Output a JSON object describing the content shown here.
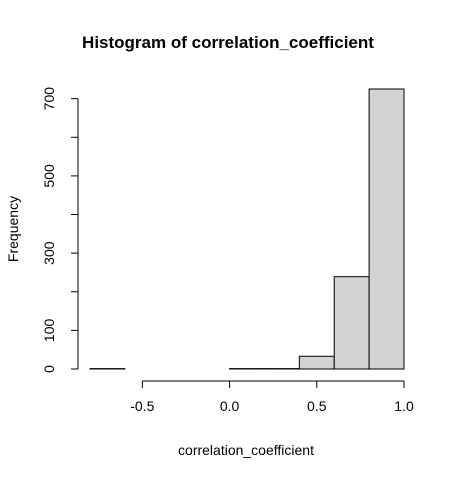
{
  "chart_data": {
    "type": "bar",
    "title": "Histogram of correlation_coefficient",
    "xlabel": "correlation_coefficient",
    "ylabel": "Frequency",
    "bins": [
      {
        "start": -0.8,
        "end": -0.6,
        "count": 1
      },
      {
        "start": -0.6,
        "end": -0.4,
        "count": 0
      },
      {
        "start": -0.4,
        "end": -0.2,
        "count": 0
      },
      {
        "start": -0.2,
        "end": 0.0,
        "count": 0
      },
      {
        "start": 0.0,
        "end": 0.2,
        "count": 1
      },
      {
        "start": 0.2,
        "end": 0.4,
        "count": 1
      },
      {
        "start": 0.4,
        "end": 0.6,
        "count": 33
      },
      {
        "start": 0.6,
        "end": 0.8,
        "count": 239
      },
      {
        "start": 0.8,
        "end": 1.0,
        "count": 725
      }
    ],
    "x_ticks": [
      -0.5,
      0.0,
      0.5,
      1.0
    ],
    "x_tick_labels": [
      "-0.5",
      "0.0",
      "0.5",
      "1.0"
    ],
    "y_ticks": [
      0,
      100,
      300,
      500,
      700
    ],
    "y_tick_labels": [
      "0",
      "100",
      "300",
      "500",
      "700"
    ],
    "y_minor_ticks": [
      200,
      400,
      600
    ],
    "xlim": [
      -0.8,
      1.0
    ],
    "ylim": [
      0,
      725
    ],
    "grid": false,
    "legend": "none",
    "colors": {
      "bar_fill": "#d3d3d3",
      "bar_stroke": "#000000"
    }
  }
}
